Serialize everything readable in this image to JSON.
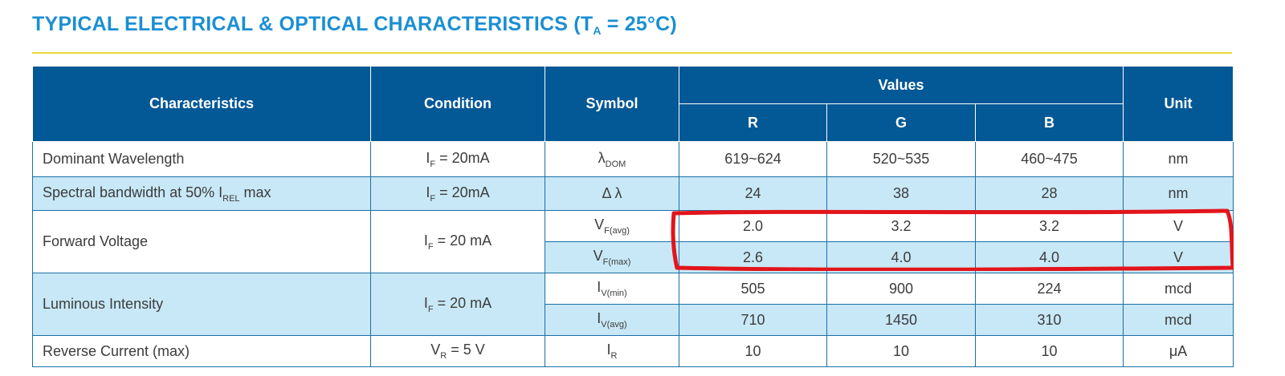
{
  "title": {
    "main": "TYPICAL ELECTRICAL & OPTICAL CHARACTERISTICS (T",
    "sub": "A",
    "tail": " = 25°C)"
  },
  "header": {
    "characteristics": "Characteristics",
    "condition": "Condition",
    "symbol": "Symbol",
    "values": "Values",
    "unit": "Unit",
    "r": "R",
    "g": "G",
    "b": "B"
  },
  "rows": {
    "dominant": {
      "label": "Dominant Wavelength",
      "cond_main": "I",
      "cond_sub": "F",
      "cond_tail": " = 20mA",
      "sym_main": "λ",
      "sym_sub": "DOM",
      "r": "619~624",
      "g": "520~535",
      "b": "460~475",
      "unit": "nm"
    },
    "spectral": {
      "label_main": "Spectral bandwidth at 50% I",
      "label_sub": "REL",
      "label_tail": " max",
      "cond_main": "I",
      "cond_sub": "F",
      "cond_tail": " = 20mA",
      "sym": "Δ λ",
      "r": "24",
      "g": "38",
      "b": "28",
      "unit": "nm"
    },
    "forward": {
      "label": "Forward Voltage",
      "cond_main": "I",
      "cond_sub": "F",
      "cond_tail": " = 20 mA",
      "avg": {
        "sym_main": "V",
        "sym_sub": "F(avg)",
        "r": "2.0",
        "g": "3.2",
        "b": "3.2",
        "unit": "V"
      },
      "max": {
        "sym_main": "V",
        "sym_sub": "F(max)",
        "r": "2.6",
        "g": "4.0",
        "b": "4.0",
        "unit": "V"
      }
    },
    "luminous": {
      "label": "Luminous Intensity",
      "cond_main": "I",
      "cond_sub": "F",
      "cond_tail": " = 20 mA",
      "min": {
        "sym_main": "I",
        "sym_sub": "V(min)",
        "r": "505",
        "g": "900",
        "b": "224",
        "unit": "mcd"
      },
      "avg": {
        "sym_main": "I",
        "sym_sub": "V(avg)",
        "r": "710",
        "g": "1450",
        "b": "310",
        "unit": "mcd"
      }
    },
    "reverse": {
      "label": "Reverse Current (max)",
      "cond_main": "V",
      "cond_sub": "R",
      "cond_tail": " = 5 V",
      "sym_main": "I",
      "sym_sub": "R",
      "r": "10",
      "g": "10",
      "b": "10",
      "unit": "μA"
    }
  },
  "colors": {
    "title": "#1b8fd3",
    "header_bg": "#035896",
    "row_shade": "#c8e8f7",
    "rule": "#e9d73a",
    "annotation": "#e3141b"
  }
}
